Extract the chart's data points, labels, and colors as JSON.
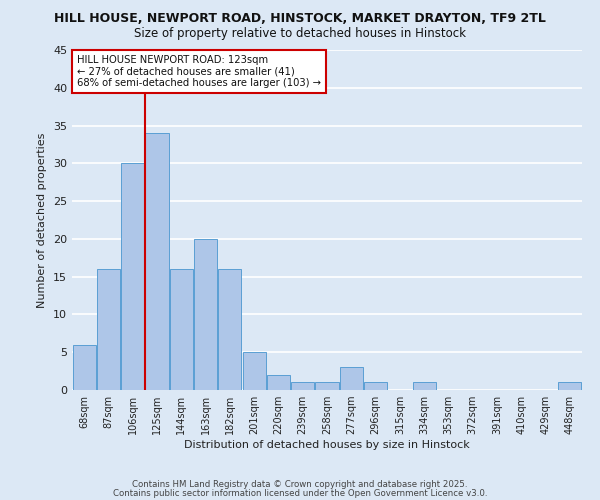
{
  "title1": "HILL HOUSE, NEWPORT ROAD, HINSTOCK, MARKET DRAYTON, TF9 2TL",
  "title2": "Size of property relative to detached houses in Hinstock",
  "xlabel": "Distribution of detached houses by size in Hinstock",
  "ylabel": "Number of detached properties",
  "bin_labels": [
    "68sqm",
    "87sqm",
    "106sqm",
    "125sqm",
    "144sqm",
    "163sqm",
    "182sqm",
    "201sqm",
    "220sqm",
    "239sqm",
    "258sqm",
    "277sqm",
    "296sqm",
    "315sqm",
    "334sqm",
    "353sqm",
    "372sqm",
    "391sqm",
    "410sqm",
    "429sqm",
    "448sqm"
  ],
  "values": [
    6,
    16,
    30,
    34,
    16,
    20,
    16,
    5,
    2,
    1,
    1,
    3,
    1,
    0,
    1,
    0,
    0,
    0,
    0,
    0,
    1
  ],
  "bar_color": "#aec6e8",
  "bar_edge_color": "#5a9fd4",
  "background_color": "#dce8f5",
  "grid_color": "#ffffff",
  "vline_color": "#cc0000",
  "ylim": [
    0,
    45
  ],
  "yticks": [
    0,
    5,
    10,
    15,
    20,
    25,
    30,
    35,
    40,
    45
  ],
  "annotation_text": "HILL HOUSE NEWPORT ROAD: 123sqm\n← 27% of detached houses are smaller (41)\n68% of semi-detached houses are larger (103) →",
  "annotation_box_color": "#ffffff",
  "annotation_box_edge": "#cc0000",
  "footer1": "Contains HM Land Registry data © Crown copyright and database right 2025.",
  "footer2": "Contains public sector information licensed under the Open Government Licence v3.0."
}
